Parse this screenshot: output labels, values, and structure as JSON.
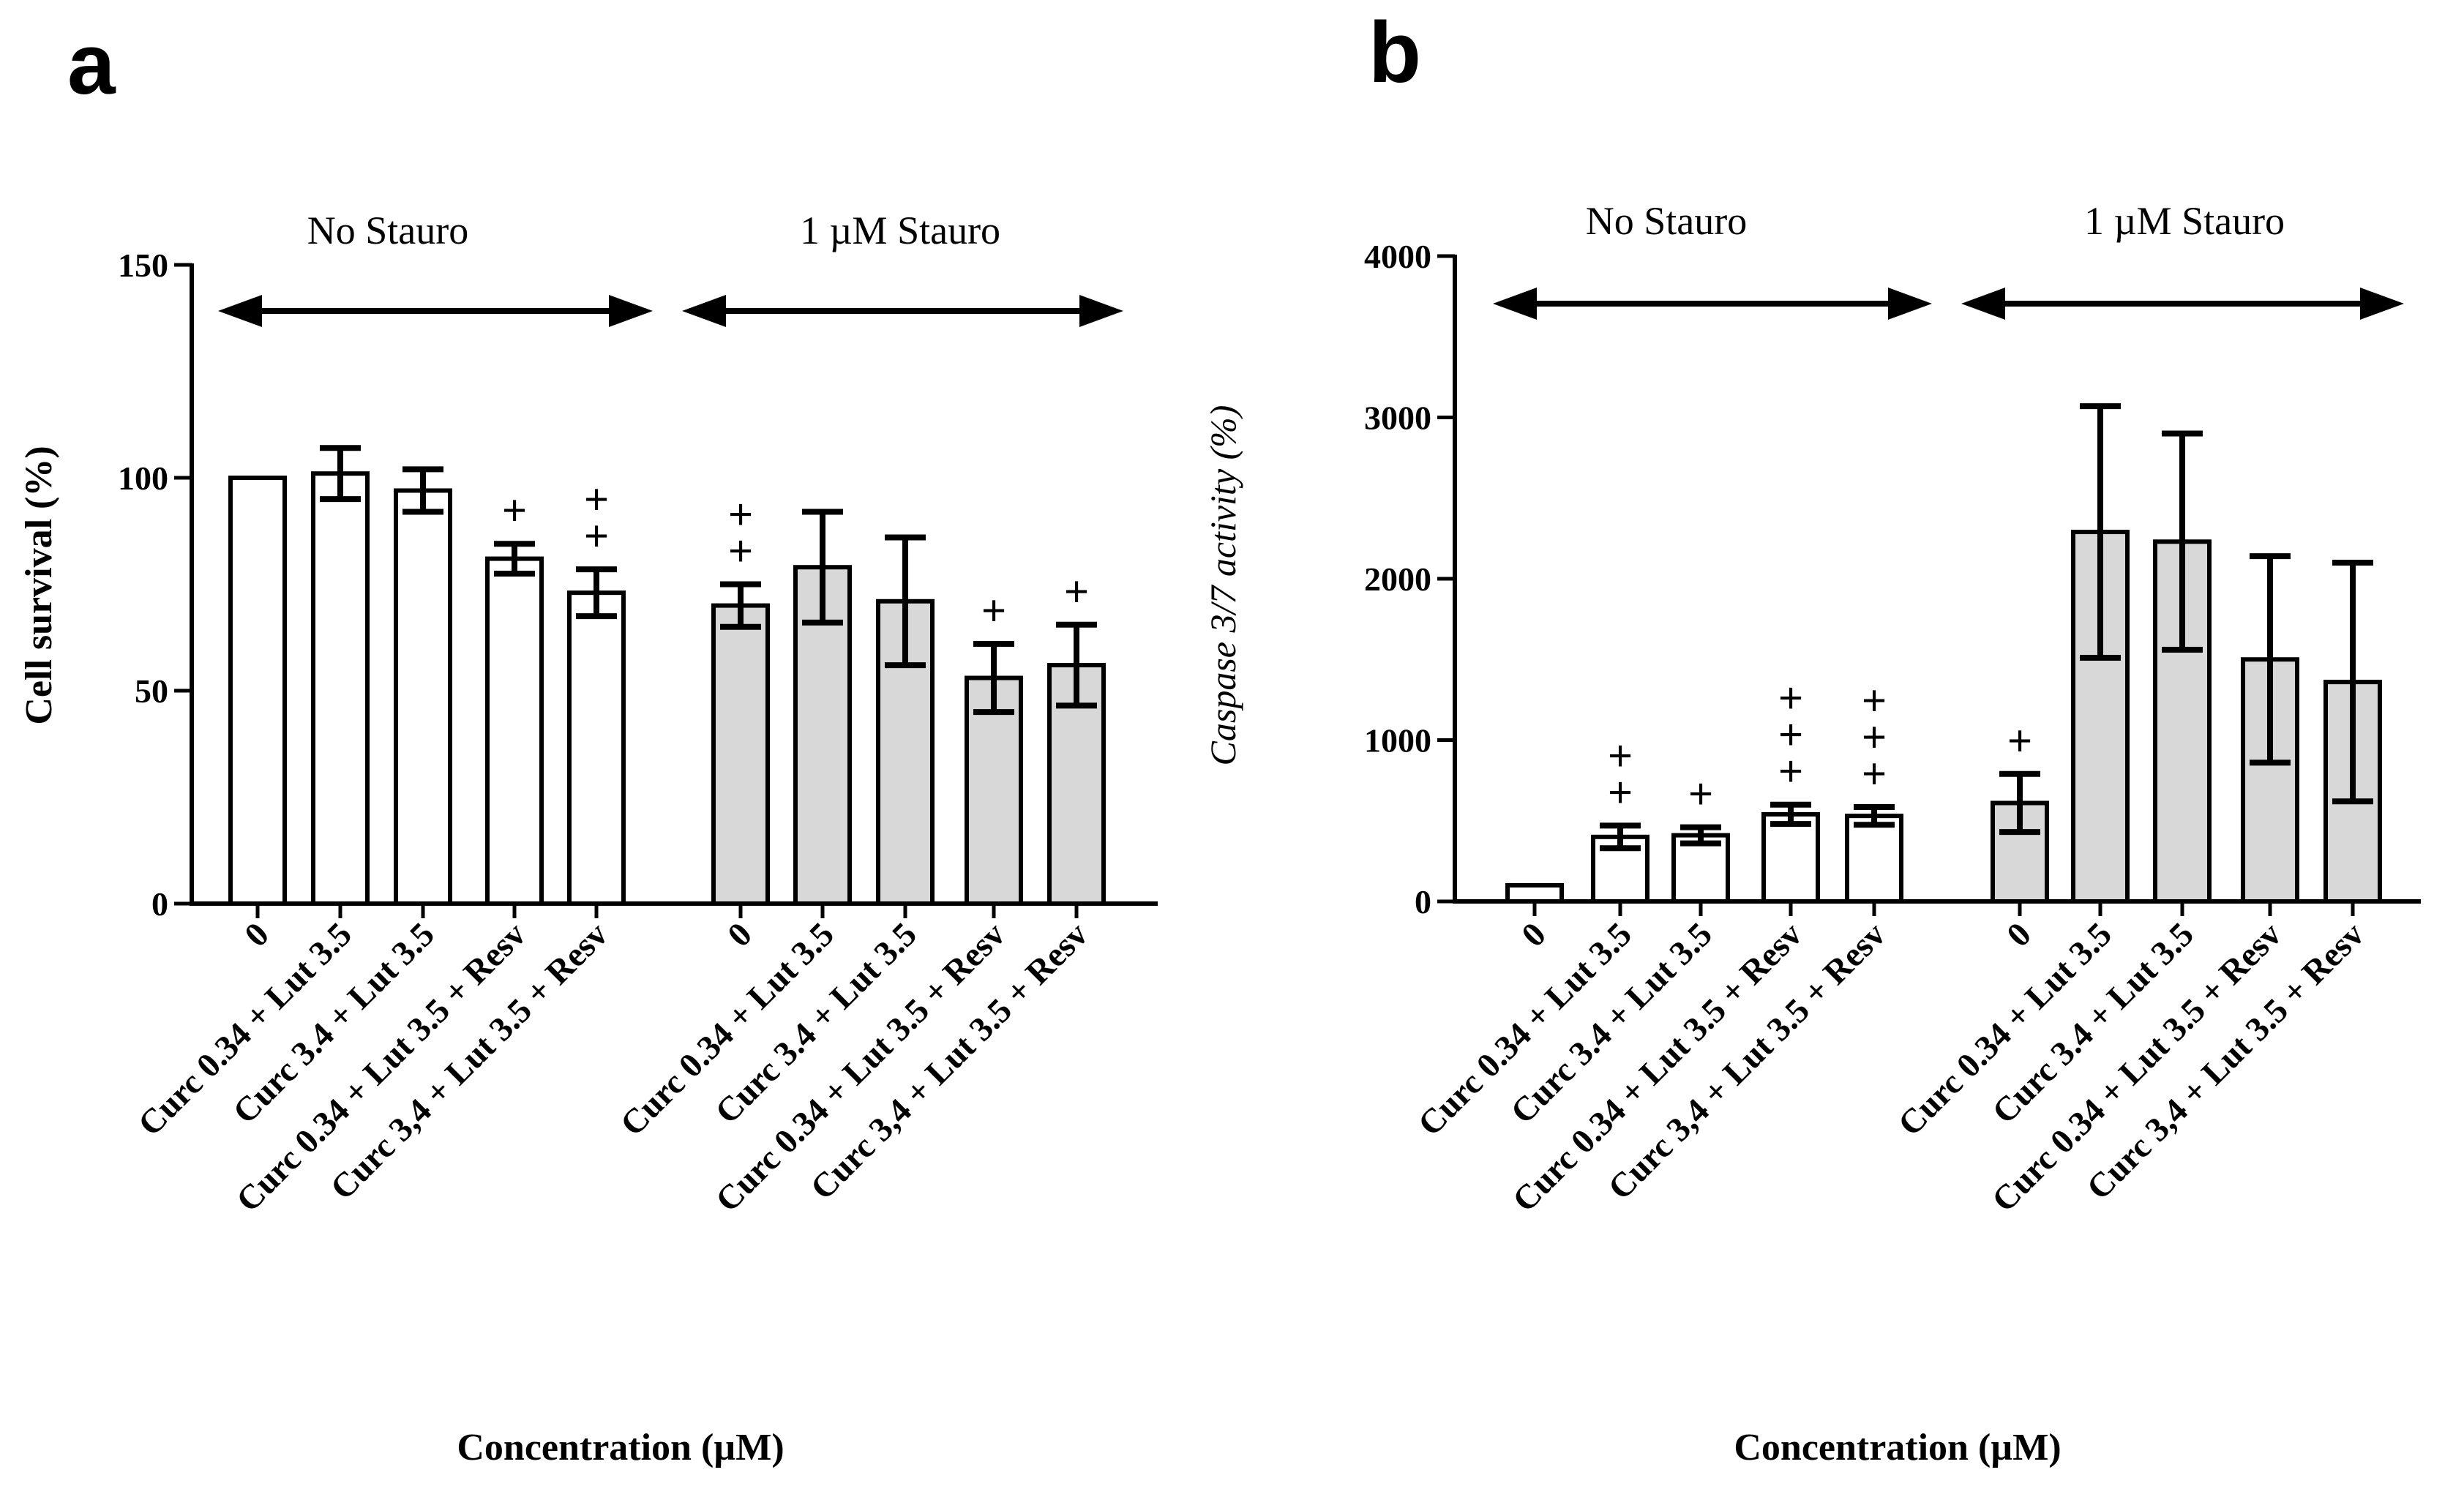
{
  "chart_data": [
    {
      "panel": "a",
      "type": "bar",
      "ylabel": "Cell survival (%)",
      "ylabel_style": "bold",
      "xlabel": "Concentration (µM)",
      "ylim": [
        0,
        150
      ],
      "yticks": [
        0,
        50,
        100,
        150
      ],
      "groups": [
        {
          "label": "No Stauro",
          "fill": "#ffffff"
        },
        {
          "label": "1 µM Stauro",
          "fill": "#d8d8d8"
        }
      ],
      "categories": [
        "0",
        "Curc 0.34 + Lut 3.5",
        "Curc 3.4 + Lut 3.5",
        "Curc 0.34 + Lut 3.5 + Resv",
        "Curc 3,4 + Lut 3.5 + Resv",
        "0",
        "Curc 0.34 + Lut 3.5",
        "Curc 3.4 + Lut 3.5",
        "Curc 0.34 + Lut 3.5 + Resv",
        "Curc 3,4 + Lut 3.5 + Resv"
      ],
      "group_index": [
        0,
        0,
        0,
        0,
        0,
        1,
        1,
        1,
        1,
        1
      ],
      "values": [
        100,
        101,
        97,
        81,
        73,
        70,
        79,
        71,
        53,
        56
      ],
      "errors": [
        0,
        6,
        5,
        3.5,
        5.5,
        5,
        13,
        15,
        8,
        9.5
      ],
      "significance": [
        "",
        "",
        "",
        "+",
        "++",
        "++",
        "",
        "",
        "+",
        "+"
      ]
    },
    {
      "panel": "b",
      "type": "bar",
      "ylabel": "Caspase 3/7 activity (%)",
      "ylabel_style": "italic",
      "xlabel": "Concentration (µM)",
      "ylim": [
        0,
        4000
      ],
      "yticks": [
        0,
        1000,
        2000,
        3000,
        4000
      ],
      "groups": [
        {
          "label": "No Stauro",
          "fill": "#ffffff"
        },
        {
          "label": "1 µM Stauro",
          "fill": "#d8d8d8"
        }
      ],
      "categories": [
        "0",
        "Curc 0.34 + Lut 3.5",
        "Curc 3.4 + Lut 3.5",
        "Curc 0.34 + Lut 3.5 + Resv",
        "Curc 3,4 + Lut 3.5 + Resv",
        "0",
        "Curc 0.34 + Lut 3.5",
        "Curc 3.4 + Lut 3.5",
        "Curc 0.34 + Lut 3.5 + Resv",
        "Curc 3,4 + Lut 3.5 + Resv"
      ],
      "group_index": [
        0,
        0,
        0,
        0,
        0,
        1,
        1,
        1,
        1,
        1
      ],
      "values": [
        100,
        400,
        410,
        540,
        530,
        610,
        2290,
        2230,
        1500,
        1360
      ],
      "errors": [
        0,
        70,
        50,
        60,
        55,
        180,
        780,
        670,
        640,
        740
      ],
      "significance": [
        "",
        "++",
        "+",
        "+++",
        "+++",
        "+",
        "",
        "",
        "",
        ""
      ]
    }
  ]
}
